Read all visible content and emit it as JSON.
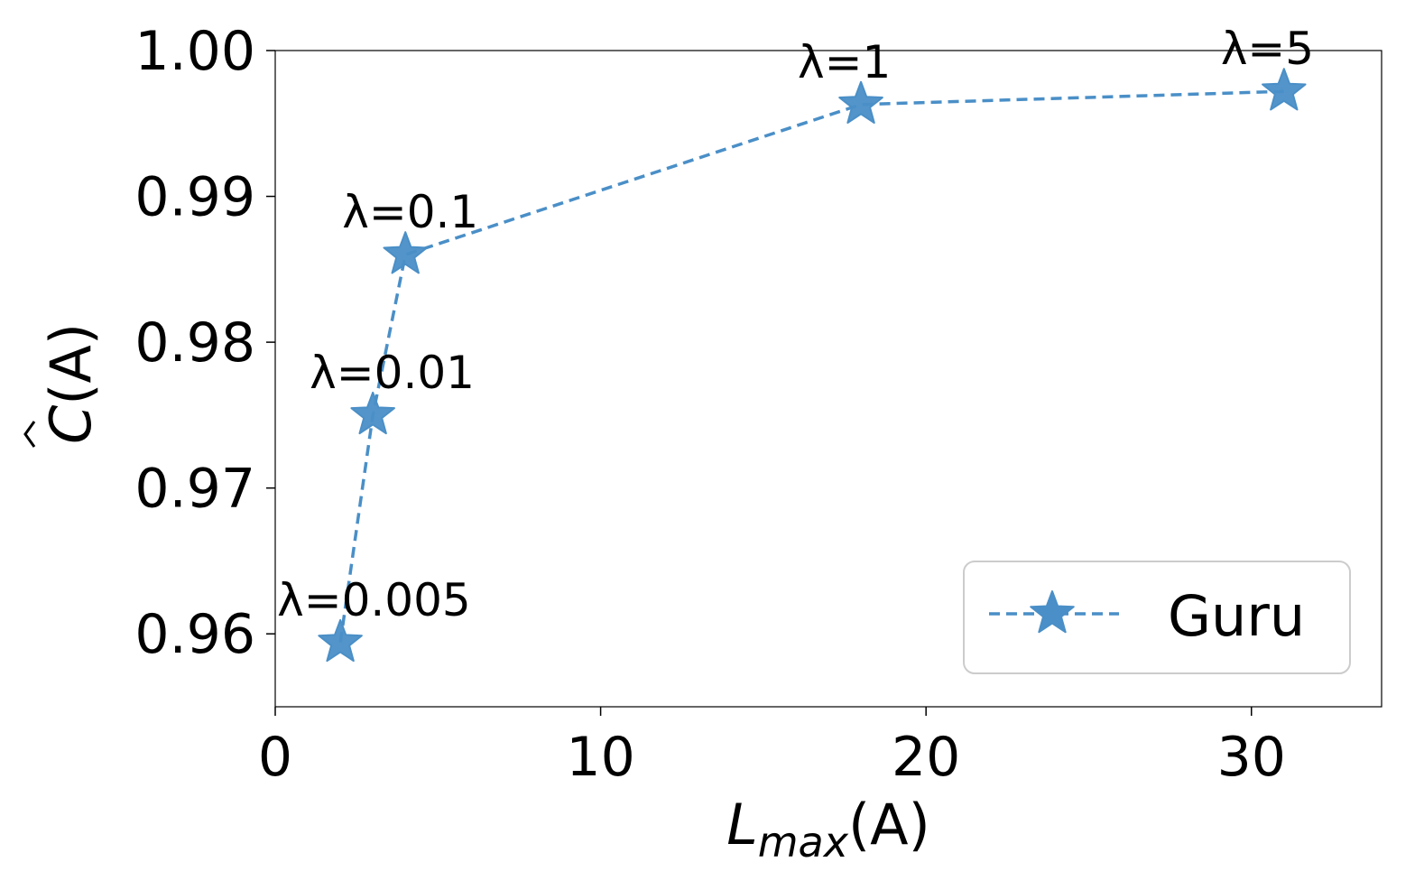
{
  "chart_data": {
    "type": "line",
    "xlabel_main": "L",
    "xlabel_sub": "max",
    "xlabel_tail": "(A)",
    "ylabel_hat": "C",
    "ylabel_tail": "(A)",
    "xlim": [
      0,
      34
    ],
    "ylim": [
      0.955,
      1.0
    ],
    "xticks": [
      0,
      10,
      20,
      30
    ],
    "xtick_labels": [
      "0",
      "10",
      "20",
      "30"
    ],
    "yticks": [
      0.96,
      0.97,
      0.98,
      0.99,
      1.0
    ],
    "ytick_labels": [
      "0.96",
      "0.97",
      "0.98",
      "0.99",
      "1.00"
    ],
    "grid": false,
    "legend_position": "lower-right",
    "series": [
      {
        "name": "Guru",
        "color": "#4a8fc7",
        "line_style": "dashed",
        "marker": "star",
        "points": [
          {
            "x": 2,
            "y": 0.9594,
            "label": "λ=0.005"
          },
          {
            "x": 3,
            "y": 0.975,
            "label": "λ=0.01"
          },
          {
            "x": 4,
            "y": 0.986,
            "label": "λ=0.1"
          },
          {
            "x": 18,
            "y": 0.9963,
            "label": "λ=1"
          },
          {
            "x": 31,
            "y": 0.9972,
            "label": "λ=5"
          }
        ]
      }
    ]
  }
}
